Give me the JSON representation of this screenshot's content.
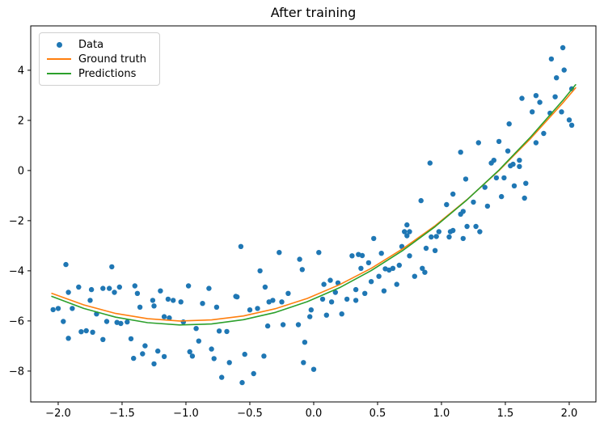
{
  "chart_data": {
    "type": "scatter",
    "title": "After training",
    "xlabel": "",
    "ylabel": "",
    "xlim": [
      -2.215,
      2.209
    ],
    "ylim": [
      -9.23,
      5.77
    ],
    "x_ticks": [
      -2.0,
      -1.5,
      -1.0,
      -0.5,
      0.0,
      0.5,
      1.0,
      1.5,
      2.0
    ],
    "x_tick_labels": [
      "−2.0",
      "−1.5",
      "−1.0",
      "−0.5",
      "0.0",
      "0.5",
      "1.0",
      "1.5",
      "2.0"
    ],
    "y_ticks": [
      -8,
      -6,
      -4,
      -2,
      0,
      2,
      4
    ],
    "y_tick_labels": [
      "−8",
      "−6",
      "−4",
      "−2",
      "0",
      "2",
      "4"
    ],
    "grid": false,
    "legend": {
      "position": "upper left",
      "items": [
        {
          "label": "Data",
          "marker": "dot",
          "color": "#1f77b4"
        },
        {
          "label": "Ground truth",
          "marker": "line",
          "color": "#ff7f0e"
        },
        {
          "label": "Predictions",
          "marker": "line",
          "color": "#2ca02c"
        }
      ]
    },
    "series": [
      {
        "name": "Data",
        "type": "scatter",
        "color": "#1f77b4",
        "marker_radius": 3.2,
        "points": [
          [
            -2.04,
            -5.55
          ],
          [
            -2.0,
            -5.5
          ],
          [
            -1.96,
            -6.02
          ],
          [
            -1.94,
            -3.75
          ],
          [
            -1.92,
            -4.86
          ],
          [
            -1.92,
            -6.69
          ],
          [
            -1.89,
            -5.5
          ],
          [
            -1.84,
            -4.65
          ],
          [
            -1.82,
            -6.43
          ],
          [
            -1.78,
            -6.39
          ],
          [
            -1.75,
            -5.18
          ],
          [
            -1.74,
            -4.75
          ],
          [
            -1.73,
            -6.45
          ],
          [
            -1.7,
            -5.72
          ],
          [
            -1.65,
            -4.7
          ],
          [
            -1.65,
            -6.74
          ],
          [
            -1.62,
            -6.02
          ],
          [
            -1.6,
            -4.7
          ],
          [
            -1.58,
            -3.84
          ],
          [
            -1.56,
            -4.86
          ],
          [
            -1.54,
            -6.06
          ],
          [
            -1.52,
            -4.65
          ],
          [
            -1.51,
            -6.1
          ],
          [
            -1.46,
            -6.04
          ],
          [
            -1.43,
            -6.71
          ],
          [
            -1.41,
            -7.49
          ],
          [
            -1.4,
            -4.6
          ],
          [
            -1.38,
            -4.9
          ],
          [
            -1.36,
            -5.45
          ],
          [
            -1.34,
            -7.31
          ],
          [
            -1.32,
            -6.99
          ],
          [
            -1.26,
            -5.18
          ],
          [
            -1.25,
            -5.4
          ],
          [
            -1.25,
            -7.71
          ],
          [
            -1.22,
            -7.2
          ],
          [
            -1.2,
            -4.8
          ],
          [
            -1.17,
            -5.83
          ],
          [
            -1.17,
            -7.42
          ],
          [
            -1.14,
            -5.13
          ],
          [
            -1.13,
            -5.88
          ],
          [
            -1.1,
            -5.18
          ],
          [
            -1.04,
            -5.24
          ],
          [
            -1.02,
            -6.04
          ],
          [
            -0.98,
            -4.6
          ],
          [
            -0.97,
            -7.23
          ],
          [
            -0.95,
            -7.4
          ],
          [
            -0.92,
            -6.3
          ],
          [
            -0.9,
            -6.8
          ],
          [
            -0.87,
            -5.3
          ],
          [
            -0.82,
            -4.7
          ],
          [
            -0.8,
            -7.12
          ],
          [
            -0.78,
            -7.5
          ],
          [
            -0.76,
            -5.45
          ],
          [
            -0.74,
            -6.4
          ],
          [
            -0.72,
            -8.25
          ],
          [
            -0.68,
            -6.42
          ],
          [
            -0.66,
            -7.66
          ],
          [
            -0.61,
            -5.02
          ],
          [
            -0.6,
            -5.04
          ],
          [
            -0.57,
            -3.03
          ],
          [
            -0.56,
            -8.46
          ],
          [
            -0.54,
            -7.33
          ],
          [
            -0.5,
            -5.56
          ],
          [
            -0.47,
            -8.1
          ],
          [
            -0.44,
            -5.5
          ],
          [
            -0.42,
            -4.0
          ],
          [
            -0.39,
            -7.4
          ],
          [
            -0.38,
            -4.65
          ],
          [
            -0.36,
            -6.2
          ],
          [
            -0.35,
            -5.24
          ],
          [
            -0.32,
            -5.18
          ],
          [
            -0.27,
            -3.27
          ],
          [
            -0.25,
            -5.24
          ],
          [
            -0.24,
            -6.15
          ],
          [
            -0.2,
            -4.9
          ],
          [
            -0.12,
            -6.15
          ],
          [
            -0.11,
            -3.54
          ],
          [
            -0.09,
            -3.95
          ],
          [
            -0.08,
            -7.66
          ],
          [
            -0.07,
            -6.85
          ],
          [
            -0.03,
            -5.83
          ],
          [
            -0.02,
            -5.56
          ],
          [
            0.0,
            -7.93
          ],
          [
            0.04,
            -3.27
          ],
          [
            0.07,
            -5.13
          ],
          [
            0.08,
            -4.54
          ],
          [
            0.1,
            -5.77
          ],
          [
            0.13,
            -4.38
          ],
          [
            0.14,
            -5.24
          ],
          [
            0.17,
            -4.86
          ],
          [
            0.19,
            -4.48
          ],
          [
            0.22,
            -5.72
          ],
          [
            0.26,
            -5.13
          ],
          [
            0.3,
            -3.4
          ],
          [
            0.33,
            -4.75
          ],
          [
            0.33,
            -5.18
          ],
          [
            0.35,
            -3.35
          ],
          [
            0.37,
            -3.9
          ],
          [
            0.38,
            -3.39
          ],
          [
            0.4,
            -4.9
          ],
          [
            0.43,
            -3.68
          ],
          [
            0.45,
            -4.43
          ],
          [
            0.47,
            -2.71
          ],
          [
            0.51,
            -4.22
          ],
          [
            0.53,
            -3.3
          ],
          [
            0.55,
            -4.8
          ],
          [
            0.56,
            -3.92
          ],
          [
            0.59,
            -3.97
          ],
          [
            0.62,
            -3.9
          ],
          [
            0.65,
            -4.54
          ],
          [
            0.67,
            -3.78
          ],
          [
            0.69,
            -3.03
          ],
          [
            0.71,
            -2.44
          ],
          [
            0.73,
            -2.6
          ],
          [
            0.73,
            -2.17
          ],
          [
            0.75,
            -3.4
          ],
          [
            0.75,
            -2.44
          ],
          [
            0.79,
            -4.22
          ],
          [
            0.84,
            -1.2
          ],
          [
            0.85,
            -3.9
          ],
          [
            0.87,
            -4.06
          ],
          [
            0.88,
            -3.1
          ],
          [
            0.91,
            0.3
          ],
          [
            0.92,
            -2.65
          ],
          [
            0.95,
            -3.19
          ],
          [
            0.96,
            -2.63
          ],
          [
            0.98,
            -2.44
          ],
          [
            1.04,
            -1.36
          ],
          [
            1.06,
            -2.65
          ],
          [
            1.07,
            -2.44
          ],
          [
            1.09,
            -0.94
          ],
          [
            1.09,
            -2.39
          ],
          [
            1.15,
            0.73
          ],
          [
            1.15,
            -1.74
          ],
          [
            1.17,
            -1.63
          ],
          [
            1.17,
            -2.71
          ],
          [
            1.19,
            -0.34
          ],
          [
            1.2,
            -2.23
          ],
          [
            1.25,
            -1.26
          ],
          [
            1.27,
            -2.23
          ],
          [
            1.29,
            1.11
          ],
          [
            1.3,
            -2.44
          ],
          [
            1.34,
            -0.67
          ],
          [
            1.36,
            -1.42
          ],
          [
            1.39,
            0.3
          ],
          [
            1.41,
            0.41
          ],
          [
            1.43,
            -0.29
          ],
          [
            1.45,
            1.16
          ],
          [
            1.47,
            -1.04
          ],
          [
            1.49,
            -0.29
          ],
          [
            1.52,
            0.78
          ],
          [
            1.53,
            1.86
          ],
          [
            1.54,
            0.19
          ],
          [
            1.56,
            0.25
          ],
          [
            1.57,
            -0.61
          ],
          [
            1.61,
            0.41
          ],
          [
            1.61,
            0.16
          ],
          [
            1.63,
            2.88
          ],
          [
            1.65,
            -1.1
          ],
          [
            1.66,
            -0.51
          ],
          [
            1.71,
            2.34
          ],
          [
            1.74,
            2.99
          ],
          [
            1.74,
            1.11
          ],
          [
            1.77,
            2.72
          ],
          [
            1.8,
            1.48
          ],
          [
            1.85,
            2.29
          ],
          [
            1.86,
            4.45
          ],
          [
            1.89,
            2.94
          ],
          [
            1.9,
            3.7
          ],
          [
            1.94,
            2.34
          ],
          [
            1.95,
            4.9
          ],
          [
            1.96,
            4.01
          ],
          [
            2.0,
            2.02
          ],
          [
            2.02,
            1.81
          ],
          [
            2.02,
            3.26
          ]
        ]
      },
      {
        "name": "Ground truth",
        "type": "line",
        "color": "#ff7f0e",
        "line_width": 1.6,
        "x": [
          -2.05,
          -1.8,
          -1.55,
          -1.3,
          -1.05,
          -0.8,
          -0.55,
          -0.3,
          -0.05,
          0.2,
          0.45,
          0.7,
          0.95,
          1.2,
          1.45,
          1.7,
          1.95,
          2.05
        ],
        "y": [
          -4.9,
          -5.36,
          -5.7,
          -5.91,
          -6.0,
          -5.96,
          -5.8,
          -5.51,
          -5.1,
          -4.56,
          -3.9,
          -3.11,
          -2.2,
          -1.16,
          0.0,
          1.29,
          2.7,
          3.3
        ]
      },
      {
        "name": "Predictions",
        "type": "line",
        "color": "#2ca02c",
        "line_width": 1.6,
        "x": [
          -2.05,
          -1.8,
          -1.55,
          -1.3,
          -1.05,
          -0.8,
          -0.55,
          -0.3,
          -0.05,
          0.2,
          0.45,
          0.7,
          0.95,
          1.2,
          1.45,
          1.7,
          1.95,
          2.05
        ],
        "y": [
          -5.02,
          -5.5,
          -5.85,
          -6.07,
          -6.16,
          -6.12,
          -5.95,
          -5.66,
          -5.23,
          -4.68,
          -3.99,
          -3.18,
          -2.24,
          -1.17,
          0.02,
          1.35,
          2.8,
          3.42
        ]
      }
    ]
  }
}
